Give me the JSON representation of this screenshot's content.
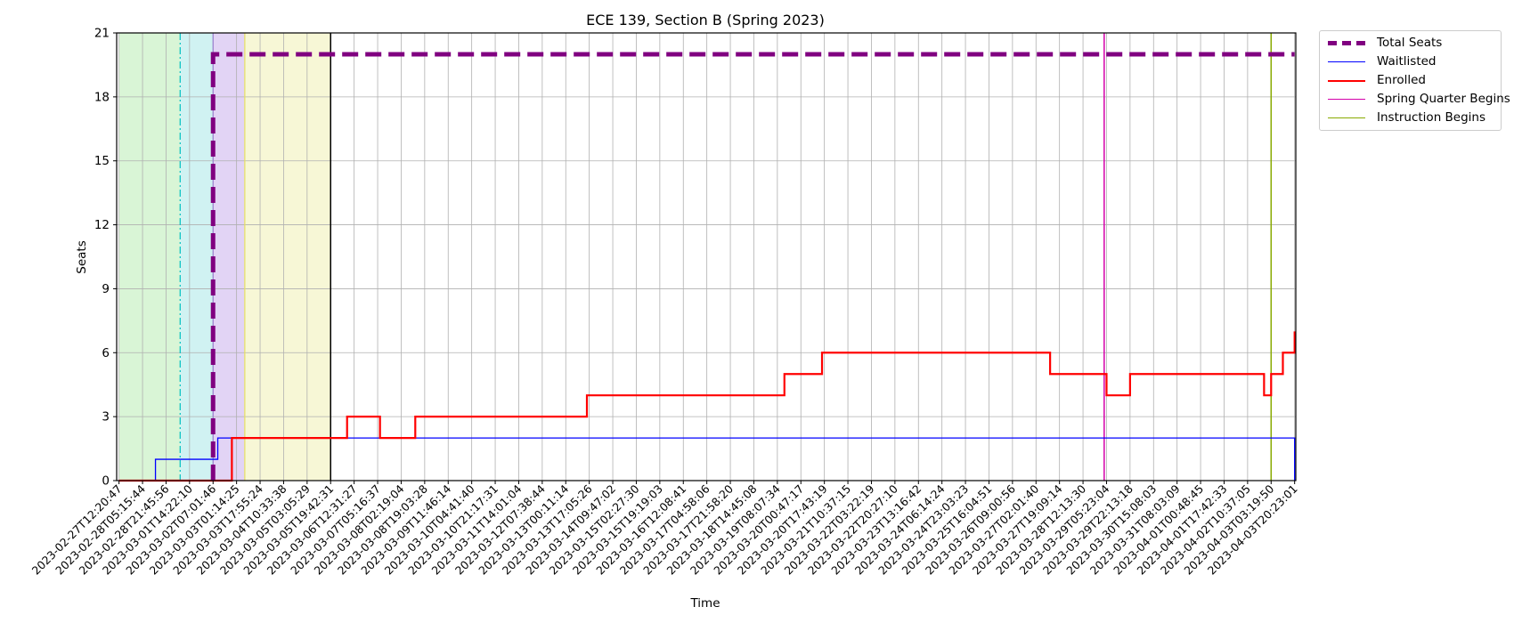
{
  "chart_data": {
    "type": "line",
    "title": "ECE 139, Section B (Spring 2023)",
    "xlabel": "Time",
    "ylabel": "Seats",
    "ylim": [
      0,
      21
    ],
    "yticks": [
      0,
      3,
      6,
      9,
      12,
      15,
      18,
      21
    ],
    "grid": true,
    "legend_position": "outside-top-right",
    "x_tick_labels": [
      "2023-02-27T12:20:47",
      "2023-02-28T05:15:44",
      "2023-02-28T21:45:56",
      "2023-03-01T14:22:10",
      "2023-03-02T07:01:46",
      "2023-03-03T01:14:25",
      "2023-03-03T17:55:24",
      "2023-03-04T10:33:38",
      "2023-03-05T03:05:29",
      "2023-03-05T19:42:31",
      "2023-03-06T12:31:27",
      "2023-03-07T05:16:37",
      "2023-03-08T02:19:04",
      "2023-03-08T19:03:28",
      "2023-03-09T11:46:14",
      "2023-03-10T04:41:40",
      "2023-03-10T21:17:31",
      "2023-03-11T14:01:04",
      "2023-03-12T07:38:44",
      "2023-03-13T00:11:14",
      "2023-03-13T17:05:26",
      "2023-03-14T09:47:02",
      "2023-03-15T02:27:30",
      "2023-03-15T19:19:03",
      "2023-03-16T12:08:41",
      "2023-03-17T04:58:06",
      "2023-03-17T21:58:20",
      "2023-03-18T14:45:08",
      "2023-03-19T08:07:34",
      "2023-03-20T00:47:17",
      "2023-03-20T17:43:19",
      "2023-03-21T10:37:15",
      "2023-03-22T03:22:19",
      "2023-03-22T20:27:10",
      "2023-03-23T13:16:42",
      "2023-03-24T06:14:24",
      "2023-03-24T23:03:23",
      "2023-03-25T16:04:51",
      "2023-03-26T09:00:56",
      "2023-03-27T02:01:40",
      "2023-03-27T19:09:14",
      "2023-03-28T12:13:30",
      "2023-03-29T05:23:04",
      "2023-03-29T22:13:18",
      "2023-03-30T15:08:03",
      "2023-03-31T08:03:09",
      "2023-04-01T00:48:45",
      "2023-04-01T17:42:33",
      "2023-04-02T10:37:05",
      "2023-04-03T03:19:50",
      "2023-04-03T20:23:01"
    ],
    "series": [
      {
        "name": "Total Seats",
        "color": "#800080",
        "style": "dashed",
        "x": [
          4.0,
          4.0,
          50.0
        ],
        "y": [
          0,
          20,
          20
        ]
      },
      {
        "name": "Waitlisted",
        "color": "#0000ff",
        "style": "step",
        "x": [
          0,
          1.55,
          4.2,
          50.0
        ],
        "y": [
          0,
          1,
          2,
          0
        ]
      },
      {
        "name": "Enrolled",
        "color": "#ff0000",
        "style": "step",
        "x": [
          0,
          4.8,
          9.7,
          11.1,
          12.6,
          19.9,
          28.3,
          29.9,
          39.6,
          42.0,
          43.0,
          48.7,
          49.0,
          49.5,
          50.0
        ],
        "y": [
          0,
          2,
          3,
          2,
          3,
          4,
          5,
          6,
          5,
          4,
          5,
          4,
          5,
          6,
          7
        ]
      }
    ],
    "vlines": [
      {
        "name": "Spring Quarter Begins",
        "color": "#d400aa",
        "x": 41.9
      },
      {
        "name": "Instruction Begins",
        "color": "#88aa00",
        "x": 49.0
      }
    ],
    "regions": [
      {
        "color": "#d9f5d6",
        "x": [
          0,
          2.6
        ]
      },
      {
        "color": "#d0f2f2",
        "x": [
          2.6,
          4.0
        ]
      },
      {
        "color": "#e2d4f5",
        "x": [
          4.0,
          5.35
        ]
      },
      {
        "color": "#f7f7d6",
        "x": [
          5.35,
          9.0
        ]
      }
    ],
    "markers": [
      {
        "color": "#00c0c0",
        "x": 2.6
      },
      {
        "color": "#9a7fd0",
        "x": 4.0
      },
      {
        "color": "#e8e060",
        "x": 5.35
      },
      {
        "color": "#000000",
        "x": 9.0
      }
    ]
  },
  "legend": [
    {
      "label": "Total Seats",
      "color": "#800080"
    },
    {
      "label": "Waitlisted",
      "color": "#0000ff"
    },
    {
      "label": "Enrolled",
      "color": "#ff0000"
    },
    {
      "label": "Spring Quarter Begins",
      "color": "#d400aa"
    },
    {
      "label": "Instruction Begins",
      "color": "#88aa00"
    }
  ]
}
